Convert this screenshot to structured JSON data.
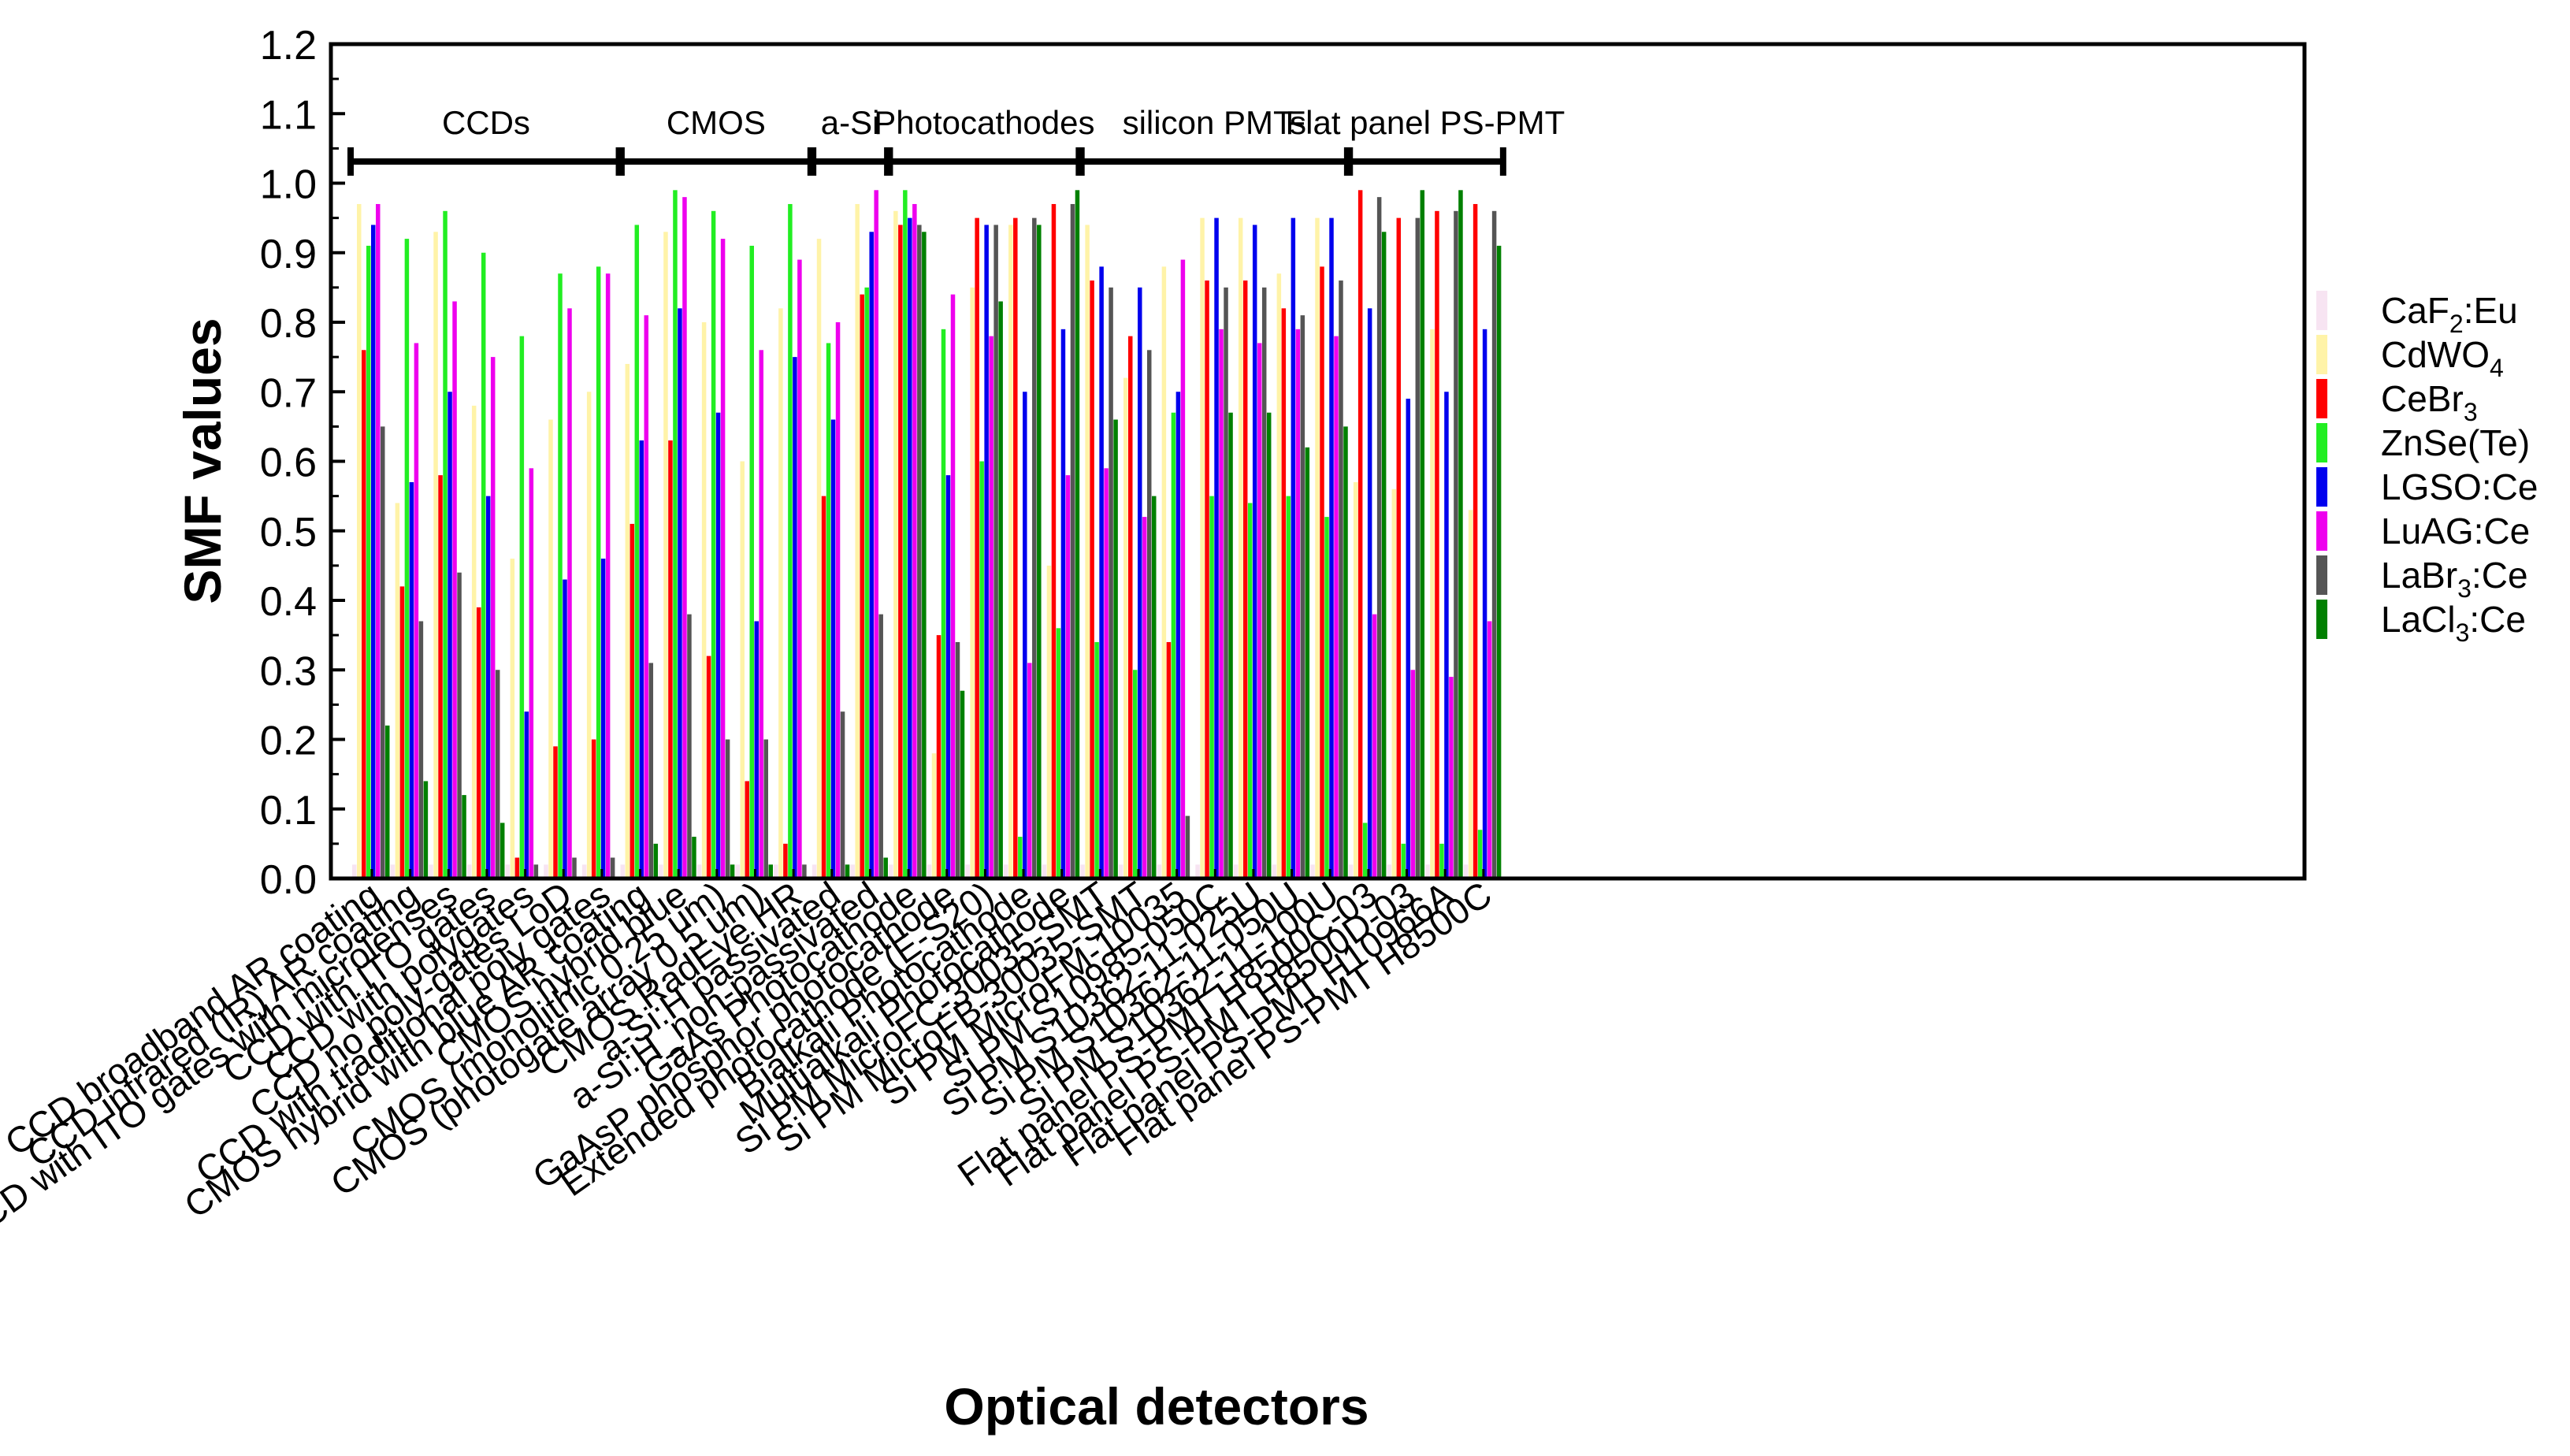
{
  "chart_data": {
    "type": "bar",
    "title": "",
    "xlabel": "Optical detectors",
    "ylabel": "SMF values",
    "ylim": [
      0,
      1.2
    ],
    "yticks": [
      "0.0",
      "0.1",
      "0.2",
      "0.3",
      "0.4",
      "0.5",
      "0.6",
      "0.7",
      "0.8",
      "0.9",
      "1.0",
      "1.1",
      "1.2"
    ],
    "grid": false,
    "legend_position": "right",
    "categories": [
      "CCD broadband AR coating",
      "CCD infrared (IR) AR coating",
      "CCD with ITO gates with microlenses",
      "CCD with ITO gates",
      "CCD with polygates",
      "CCD no poly-gates LoD",
      "CCD with traditional poly gates",
      "CMOS hybrid with blue AR coating",
      "CMOS hybrid blue",
      "CMOS (monolithic 0.25 um)",
      "CMOS (photogate array 0.5 um)",
      "CMOS RadEye HR",
      "a-Si:H passivated",
      "a-Si:H_non-passivated",
      "GaAs Photocathode",
      "GaAsP phosphor photocathode",
      "Extended photocathode (E-S20)",
      "Bialkali Photocathode",
      "Multialkali Photocathode",
      "Si PM MicroFC-30035-SMT",
      "Si PM MicroFB-30035-SMT",
      "Si PM MicroFM-10035",
      "Si PM S10985-050C",
      "Si PM S10362-11-025U",
      "Si PM S10362-11-050U",
      "Si PM S10362-11-100U",
      "Flat panel PS-PMT H8500C-03",
      "Flat panel PS-PMT H8500D-03",
      "Flat panel PS-PMT H10966A",
      "Flat panel PS-PMT H8500C"
    ],
    "series": [
      {
        "name": "CaF₂:Eu",
        "sub": "2",
        "prefix": "CaF",
        "suffix": ":Eu",
        "color": "#f7e4f2",
        "values": [
          0.02,
          0.02,
          0.02,
          0.02,
          0.02,
          0.02,
          0.02,
          0.02,
          0.02,
          0.02,
          0.02,
          0.02,
          0.02,
          0.02,
          0.02,
          0.02,
          0.02,
          0.02,
          0.02,
          0.02,
          0.02,
          0.02,
          0.02,
          0.02,
          0.02,
          0.02,
          0.02,
          0.02,
          0.02,
          0.02
        ]
      },
      {
        "name": "CdWO₄",
        "sub": "4",
        "prefix": "CdWO",
        "suffix": "",
        "color": "#fff3a8",
        "values": [
          0.97,
          0.54,
          0.93,
          0.68,
          0.46,
          0.66,
          0.7,
          0.74,
          0.93,
          0.8,
          0.6,
          0.82,
          0.92,
          0.97,
          0.96,
          0.18,
          0.85,
          0.94,
          0.45,
          0.94,
          0.72,
          0.88,
          0.95,
          0.95,
          0.87,
          0.95,
          0.57,
          0.56,
          0.79,
          0.53
        ]
      },
      {
        "name": "CeBr₃",
        "sub": "3",
        "prefix": "CeBr",
        "suffix": "",
        "color": "#ff0000",
        "values": [
          0.76,
          0.42,
          0.58,
          0.39,
          0.03,
          0.19,
          0.2,
          0.51,
          0.63,
          0.32,
          0.14,
          0.05,
          0.55,
          0.84,
          0.94,
          0.35,
          0.95,
          0.95,
          0.97,
          0.86,
          0.78,
          0.34,
          0.86,
          0.86,
          0.82,
          0.88,
          0.99,
          0.95,
          0.96,
          0.97
        ]
      },
      {
        "name": "ZnSe(Te)",
        "sub": "",
        "prefix": "ZnSe(Te)",
        "suffix": "",
        "color": "#22ee22",
        "values": [
          0.91,
          0.92,
          0.96,
          0.9,
          0.78,
          0.87,
          0.88,
          0.94,
          0.99,
          0.96,
          0.91,
          0.97,
          0.77,
          0.85,
          0.99,
          0.79,
          0.6,
          0.06,
          0.36,
          0.34,
          0.3,
          0.67,
          0.55,
          0.54,
          0.55,
          0.52,
          0.08,
          0.05,
          0.05,
          0.07
        ]
      },
      {
        "name": "LGSO:Ce",
        "sub": "",
        "prefix": "LGSO:Ce",
        "suffix": "",
        "color": "#0000ee",
        "values": [
          0.94,
          0.57,
          0.7,
          0.55,
          0.24,
          0.43,
          0.46,
          0.63,
          0.82,
          0.67,
          0.37,
          0.75,
          0.66,
          0.93,
          0.95,
          0.58,
          0.94,
          0.7,
          0.79,
          0.88,
          0.85,
          0.7,
          0.95,
          0.94,
          0.95,
          0.95,
          0.82,
          0.69,
          0.7,
          0.79
        ]
      },
      {
        "name": "LuAG:Ce",
        "sub": "",
        "prefix": "LuAG:Ce",
        "suffix": "",
        "color": "#ee00ee",
        "values": [
          0.97,
          0.77,
          0.83,
          0.75,
          0.59,
          0.82,
          0.87,
          0.81,
          0.98,
          0.92,
          0.76,
          0.89,
          0.8,
          0.99,
          0.97,
          0.84,
          0.78,
          0.31,
          0.58,
          0.59,
          0.52,
          0.89,
          0.79,
          0.77,
          0.79,
          0.78,
          0.38,
          0.3,
          0.29,
          0.37
        ]
      },
      {
        "name": "LaBr₃:Ce",
        "sub": "3",
        "prefix": "LaBr",
        "suffix": ":Ce",
        "color": "#555555",
        "values": [
          0.65,
          0.37,
          0.44,
          0.3,
          0.02,
          0.03,
          0.03,
          0.31,
          0.38,
          0.2,
          0.2,
          0.02,
          0.24,
          0.38,
          0.94,
          0.34,
          0.94,
          0.95,
          0.97,
          0.85,
          0.76,
          0.09,
          0.85,
          0.85,
          0.81,
          0.86,
          0.98,
          0.95,
          0.96,
          0.96
        ]
      },
      {
        "name": "LaCl₃:Ce",
        "sub": "3",
        "prefix": "LaCl",
        "suffix": ":Ce",
        "color": "#008000",
        "values": [
          0.22,
          0.14,
          0.12,
          0.08,
          0.0,
          0.0,
          0.0,
          0.05,
          0.06,
          0.02,
          0.02,
          0.0,
          0.02,
          0.03,
          0.93,
          0.27,
          0.83,
          0.94,
          0.99,
          0.66,
          0.55,
          0.0,
          0.67,
          0.67,
          0.62,
          0.65,
          0.93,
          0.99,
          0.99,
          0.91
        ]
      }
    ],
    "groups": [
      {
        "label": "CCDs",
        "from": 0,
        "to": 6
      },
      {
        "label": "CMOS",
        "from": 7,
        "to": 11
      },
      {
        "label": "a-Si",
        "from": 12,
        "to": 13
      },
      {
        "label": "Photocathodes",
        "from": 14,
        "to": 18
      },
      {
        "label": "silicon PMTs",
        "from": 19,
        "to": 25
      },
      {
        "label": "Flat panel PS-PMT",
        "from": 26,
        "to": 29
      }
    ]
  }
}
